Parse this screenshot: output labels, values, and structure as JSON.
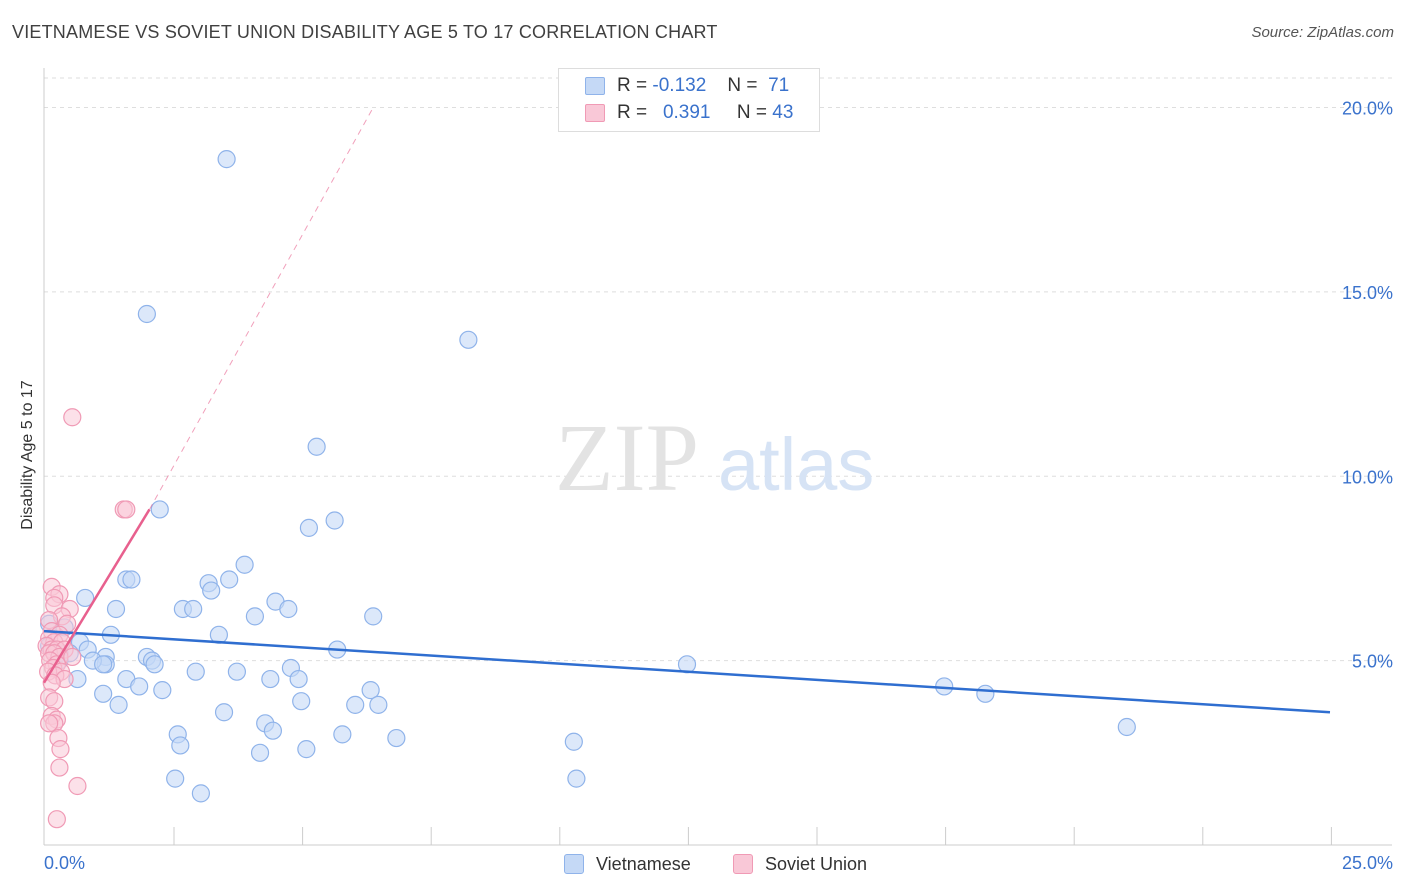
{
  "title": "VIETNAMESE VS SOVIET UNION DISABILITY AGE 5 TO 17 CORRELATION CHART",
  "source": "Source: ZipAtlas.com",
  "watermark": {
    "zip": "ZIP",
    "atlas": "atlas"
  },
  "legend_top": [
    {
      "r_label": "R =",
      "r_value": "-0.132",
      "n_label": "N =",
      "n_value": "71"
    },
    {
      "r_label": "R =",
      "r_value": "0.391",
      "n_label": "N =",
      "n_value": "43"
    }
  ],
  "legend_bottom": {
    "series1": "Vietnamese",
    "series2": "Soviet Union"
  },
  "colors": {
    "vietnamese": "#8fb3ea",
    "vietnamese_fill": "#c5d9f6",
    "vietnamese_line": "#2f6ed0",
    "soviet": "#f09ab5",
    "soviet_fill": "#f9c8d7",
    "soviet_line": "#e8608e",
    "tick_label": "#3a72cc"
  },
  "chart_data": {
    "type": "scatter",
    "title": "VIETNAMESE VS SOVIET UNION DISABILITY AGE 5 TO 17 CORRELATION CHART",
    "xlabel": "",
    "ylabel": "Disability Age 5 to 17",
    "xlim": [
      0,
      25
    ],
    "ylim": [
      0,
      20.8
    ],
    "x_tick_labels": [
      "0.0%",
      "25.0%"
    ],
    "y_ticks": [
      5,
      10,
      15,
      20
    ],
    "y_tick_labels": [
      "5.0%",
      "10.0%",
      "15.0%",
      "20.0%"
    ],
    "series": [
      {
        "name": "Vietnamese",
        "r": -0.132,
        "n": 71,
        "trend": {
          "x": [
            0.0,
            25.0
          ],
          "y": [
            5.8,
            3.6
          ]
        },
        "points": [
          [
            3.55,
            18.6
          ],
          [
            2.0,
            14.4
          ],
          [
            8.25,
            13.7
          ],
          [
            5.3,
            10.8
          ],
          [
            2.25,
            9.1
          ],
          [
            5.15,
            8.6
          ],
          [
            5.65,
            8.8
          ],
          [
            3.9,
            7.6
          ],
          [
            1.6,
            7.2
          ],
          [
            1.7,
            7.2
          ],
          [
            3.6,
            7.2
          ],
          [
            3.2,
            7.1
          ],
          [
            3.25,
            6.9
          ],
          [
            0.8,
            6.7
          ],
          [
            4.5,
            6.6
          ],
          [
            2.7,
            6.4
          ],
          [
            2.9,
            6.4
          ],
          [
            1.4,
            6.4
          ],
          [
            4.75,
            6.4
          ],
          [
            6.4,
            6.2
          ],
          [
            4.1,
            6.2
          ],
          [
            0.1,
            6.0
          ],
          [
            0.4,
            5.9
          ],
          [
            1.3,
            5.7
          ],
          [
            0.7,
            5.5
          ],
          [
            3.4,
            5.7
          ],
          [
            0.1,
            5.4
          ],
          [
            0.5,
            5.2
          ],
          [
            0.85,
            5.3
          ],
          [
            1.2,
            5.1
          ],
          [
            0.3,
            5.2
          ],
          [
            5.7,
            5.3
          ],
          [
            0.3,
            5.0
          ],
          [
            2.0,
            5.1
          ],
          [
            2.1,
            5.0
          ],
          [
            1.2,
            4.9
          ],
          [
            0.95,
            5.0
          ],
          [
            1.15,
            4.9
          ],
          [
            2.15,
            4.9
          ],
          [
            4.8,
            4.8
          ],
          [
            2.95,
            4.7
          ],
          [
            3.75,
            4.7
          ],
          [
            1.6,
            4.5
          ],
          [
            0.65,
            4.5
          ],
          [
            4.4,
            4.5
          ],
          [
            4.95,
            4.5
          ],
          [
            12.5,
            4.9
          ],
          [
            1.85,
            4.3
          ],
          [
            2.3,
            4.2
          ],
          [
            6.35,
            4.2
          ],
          [
            1.15,
            4.1
          ],
          [
            5.0,
            3.9
          ],
          [
            6.05,
            3.8
          ],
          [
            6.5,
            3.8
          ],
          [
            1.45,
            3.8
          ],
          [
            3.5,
            3.6
          ],
          [
            17.5,
            4.3
          ],
          [
            18.3,
            4.1
          ],
          [
            4.3,
            3.3
          ],
          [
            4.45,
            3.1
          ],
          [
            2.6,
            3.0
          ],
          [
            5.8,
            3.0
          ],
          [
            6.85,
            2.9
          ],
          [
            10.3,
            2.8
          ],
          [
            21.05,
            3.2
          ],
          [
            2.65,
            2.7
          ],
          [
            5.1,
            2.6
          ],
          [
            4.2,
            2.5
          ],
          [
            2.55,
            1.8
          ],
          [
            10.35,
            1.8
          ],
          [
            3.05,
            1.4
          ]
        ]
      },
      {
        "name": "Soviet Union",
        "r": 0.391,
        "n": 43,
        "trend": {
          "x": [
            0.0,
            2.05
          ],
          "y": [
            4.4,
            9.1
          ]
        },
        "trend_extended": {
          "x": [
            2.05,
            6.4
          ],
          "y": [
            9.1,
            20.0
          ]
        },
        "points": [
          [
            0.55,
            11.6
          ],
          [
            1.55,
            9.1
          ],
          [
            1.6,
            9.1
          ],
          [
            0.15,
            7.0
          ],
          [
            0.3,
            6.8
          ],
          [
            0.2,
            6.7
          ],
          [
            0.2,
            6.5
          ],
          [
            0.5,
            6.4
          ],
          [
            0.35,
            6.2
          ],
          [
            0.1,
            6.1
          ],
          [
            0.45,
            6.0
          ],
          [
            0.15,
            5.8
          ],
          [
            0.3,
            5.7
          ],
          [
            0.1,
            5.6
          ],
          [
            0.2,
            5.5
          ],
          [
            0.35,
            5.5
          ],
          [
            0.05,
            5.4
          ],
          [
            0.15,
            5.3
          ],
          [
            0.25,
            5.3
          ],
          [
            0.4,
            5.3
          ],
          [
            0.1,
            5.2
          ],
          [
            0.2,
            5.2
          ],
          [
            0.3,
            5.1
          ],
          [
            0.55,
            5.1
          ],
          [
            0.12,
            5.0
          ],
          [
            0.25,
            4.9
          ],
          [
            0.18,
            4.8
          ],
          [
            0.33,
            4.7
          ],
          [
            0.08,
            4.7
          ],
          [
            0.22,
            4.6
          ],
          [
            0.4,
            4.5
          ],
          [
            0.15,
            4.4
          ],
          [
            0.1,
            4.0
          ],
          [
            0.2,
            3.9
          ],
          [
            0.15,
            3.5
          ],
          [
            0.25,
            3.4
          ],
          [
            0.2,
            3.3
          ],
          [
            0.1,
            3.3
          ],
          [
            0.28,
            2.9
          ],
          [
            0.32,
            2.6
          ],
          [
            0.3,
            2.1
          ],
          [
            0.65,
            1.6
          ],
          [
            0.25,
            0.7
          ]
        ]
      }
    ]
  }
}
